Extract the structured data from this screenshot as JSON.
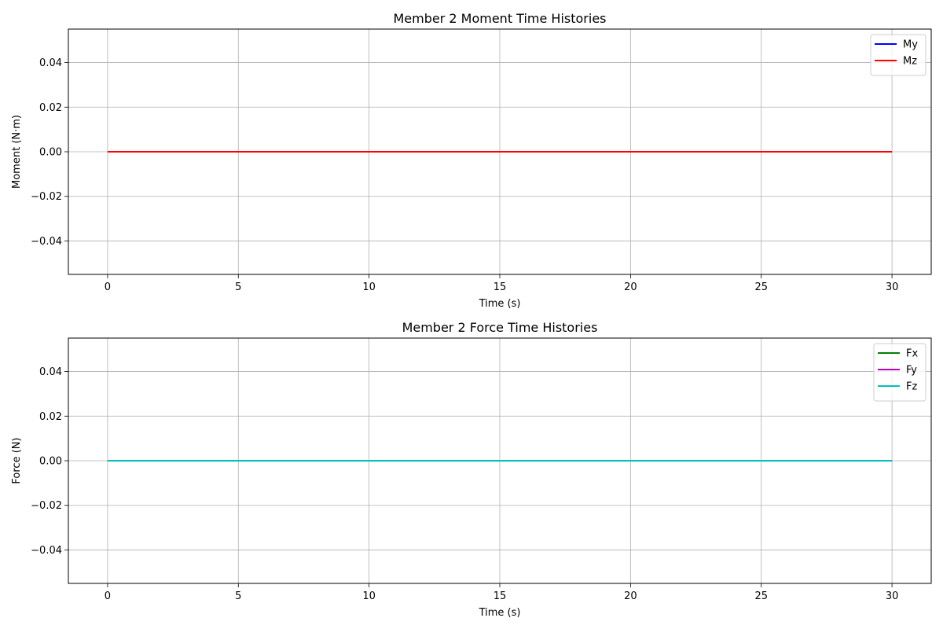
{
  "chart_data": [
    {
      "type": "line",
      "title": "Member 2 Moment Time Histories",
      "xlabel": "Time (s)",
      "ylabel": "Moment (N·m)",
      "xlim": [
        -1.5,
        31.5
      ],
      "ylim": [
        -0.055,
        0.055
      ],
      "x_ticks": [
        0,
        5,
        10,
        15,
        20,
        25,
        30
      ],
      "x_tick_labels": [
        "0",
        "5",
        "10",
        "15",
        "20",
        "25",
        "30"
      ],
      "y_ticks": [
        -0.04,
        -0.02,
        0.0,
        0.02,
        0.04
      ],
      "y_tick_labels": [
        "−0.04",
        "−0.02",
        "0.00",
        "0.02",
        "0.04"
      ],
      "grid": true,
      "legend_position": "upper-right",
      "x": [
        0,
        30
      ],
      "series": [
        {
          "name": "My",
          "color": "#0000ff",
          "values": [
            0,
            0
          ]
        },
        {
          "name": "Mz",
          "color": "#ff0000",
          "values": [
            0,
            0
          ]
        }
      ]
    },
    {
      "type": "line",
      "title": "Member 2 Force Time Histories",
      "xlabel": "Time (s)",
      "ylabel": "Force (N)",
      "xlim": [
        -1.5,
        31.5
      ],
      "ylim": [
        -0.055,
        0.055
      ],
      "x_ticks": [
        0,
        5,
        10,
        15,
        20,
        25,
        30
      ],
      "x_tick_labels": [
        "0",
        "5",
        "10",
        "15",
        "20",
        "25",
        "30"
      ],
      "y_ticks": [
        -0.04,
        -0.02,
        0.0,
        0.02,
        0.04
      ],
      "y_tick_labels": [
        "−0.04",
        "−0.02",
        "0.00",
        "0.02",
        "0.04"
      ],
      "grid": true,
      "legend_position": "upper-right",
      "x": [
        0,
        30
      ],
      "series": [
        {
          "name": "Fx",
          "color": "#008000",
          "values": [
            0,
            0
          ]
        },
        {
          "name": "Fy",
          "color": "#bf00bf",
          "values": [
            0,
            0
          ]
        },
        {
          "name": "Fz",
          "color": "#00bfbf",
          "values": [
            0,
            0
          ]
        }
      ]
    }
  ]
}
